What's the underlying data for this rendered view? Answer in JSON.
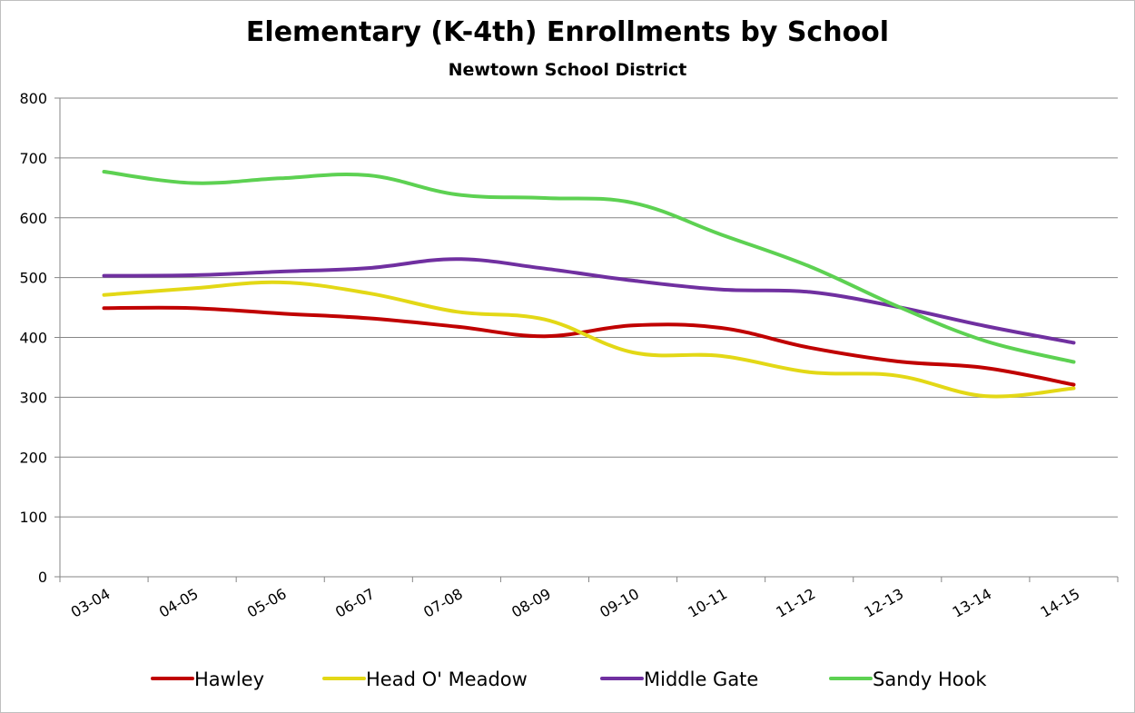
{
  "chart_data": {
    "type": "line",
    "title": "Elementary (K-4th) Enrollments by School",
    "subtitle": "Newtown School District",
    "categories": [
      "03-04",
      "04-05",
      "05-06",
      "06-07",
      "07-08",
      "08-09",
      "09-10",
      "10-11",
      "11-12",
      "12-13",
      "13-14",
      "14-15"
    ],
    "ylim": [
      0,
      800
    ],
    "yticks": [
      0,
      100,
      200,
      300,
      400,
      500,
      600,
      700,
      800
    ],
    "grid": true,
    "legend_position": "bottom",
    "series": [
      {
        "name": "Hawley",
        "color": "#c00000",
        "values": [
          449,
          449,
          440,
          432,
          418,
          402,
          420,
          416,
          383,
          360,
          349,
          321
        ]
      },
      {
        "name": "Head O' Meadow",
        "color": "#e3d816",
        "values": [
          471,
          482,
          492,
          474,
          443,
          430,
          375,
          369,
          342,
          336,
          302,
          315
        ]
      },
      {
        "name": "Middle Gate",
        "color": "#7030a0",
        "values": [
          503,
          504,
          510,
          516,
          531,
          515,
          495,
          480,
          476,
          451,
          419,
          391
        ]
      },
      {
        "name": "Sandy Hook",
        "color": "#5dd152",
        "values": [
          677,
          658,
          666,
          671,
          639,
          633,
          625,
          572,
          519,
          452,
          394,
          359
        ]
      }
    ]
  }
}
